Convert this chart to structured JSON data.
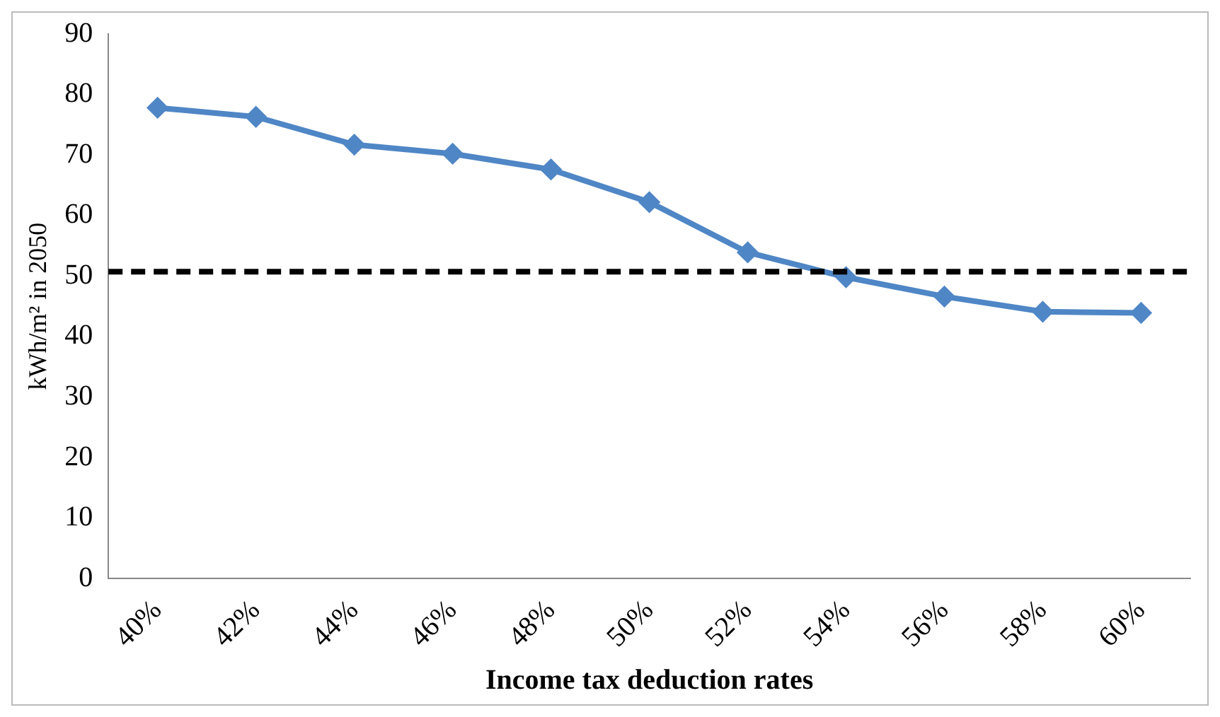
{
  "chart_data": {
    "type": "line",
    "xlabel": "Income tax deduction rates",
    "ylabel": "kWh/m² in 2050",
    "categories": [
      "40%",
      "42%",
      "44%",
      "46%",
      "48%",
      "50%",
      "52%",
      "54%",
      "56%",
      "58%",
      "60%"
    ],
    "series": [
      {
        "color": "#4f86c6",
        "values": [
          77.8,
          76.3,
          71.7,
          70.2,
          67.6,
          62.2,
          53.9,
          49.8,
          46.6,
          44.1,
          43.9
        ]
      }
    ],
    "ylim": [
      0,
      90
    ],
    "yticks": [
      0,
      10,
      20,
      30,
      40,
      50,
      60,
      70,
      80,
      90
    ],
    "grid": false,
    "legend": false,
    "marker": "diamond",
    "line_style": "solid",
    "ref_lines": [
      {
        "axis": "y",
        "value": 50.7,
        "color": "#000000",
        "line_style": "dashed"
      }
    ]
  }
}
